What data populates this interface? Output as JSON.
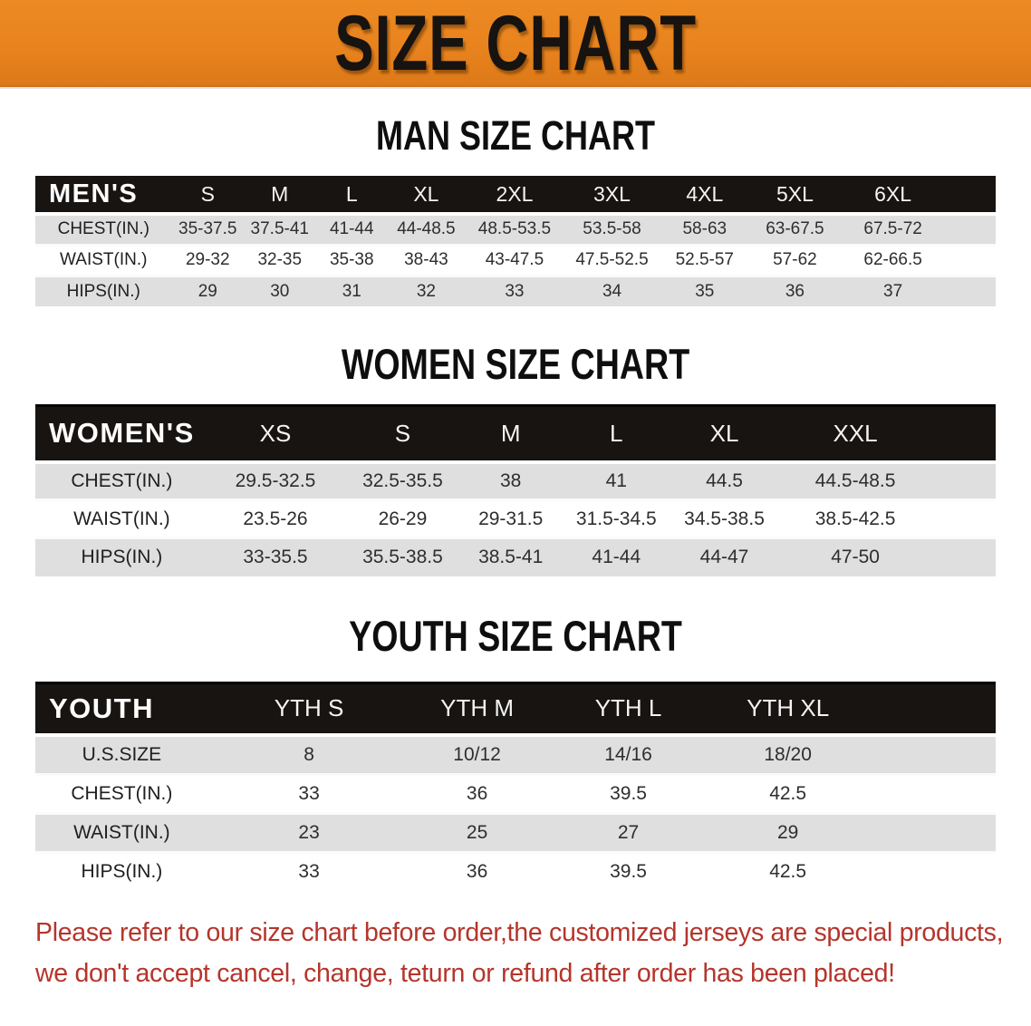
{
  "banner": {
    "title": "SIZE CHART"
  },
  "sections": [
    {
      "heading": "MAN SIZE CHART",
      "group_label": "MEN'S",
      "columns": [
        "S",
        "M",
        "L",
        "XL",
        "2XL",
        "3XL",
        "4XL",
        "5XL",
        "6XL"
      ],
      "rows": [
        {
          "label": "CHEST(IN.)",
          "values": [
            "35-37.5",
            "37.5-41",
            "41-44",
            "44-48.5",
            "48.5-53.5",
            "53.5-58",
            "58-63",
            "63-67.5",
            "67.5-72"
          ]
        },
        {
          "label": "WAIST(IN.)",
          "values": [
            "29-32",
            "32-35",
            "35-38",
            "38-43",
            "43-47.5",
            "47.5-52.5",
            "52.5-57",
            "57-62",
            "62-66.5"
          ]
        },
        {
          "label": "HIPS(IN.)",
          "values": [
            "29",
            "30",
            "31",
            "32",
            "33",
            "34",
            "35",
            "36",
            "37"
          ]
        }
      ]
    },
    {
      "heading": "WOMEN SIZE CHART",
      "group_label": "WOMEN'S",
      "columns": [
        "XS",
        "S",
        "M",
        "L",
        "XL",
        "XXL"
      ],
      "rows": [
        {
          "label": "CHEST(IN.)",
          "values": [
            "29.5-32.5",
            "32.5-35.5",
            "38",
            "41",
            "44.5",
            "44.5-48.5"
          ]
        },
        {
          "label": "WAIST(IN.)",
          "values": [
            "23.5-26",
            "26-29",
            "29-31.5",
            "31.5-34.5",
            "34.5-38.5",
            "38.5-42.5"
          ]
        },
        {
          "label": "HIPS(IN.)",
          "values": [
            "33-35.5",
            "35.5-38.5",
            "38.5-41",
            "41-44",
            "44-47",
            "47-50"
          ]
        }
      ]
    },
    {
      "heading": "YOUTH SIZE CHART",
      "group_label": "YOUTH",
      "columns": [
        "YTH S",
        "YTH M",
        "YTH L",
        "YTH XL"
      ],
      "rows": [
        {
          "label": "U.S.SIZE",
          "values": [
            "8",
            "10/12",
            "14/16",
            "18/20"
          ]
        },
        {
          "label": "CHEST(IN.)",
          "values": [
            "33",
            "36",
            "39.5",
            "42.5"
          ]
        },
        {
          "label": "WAIST(IN.)",
          "values": [
            "23",
            "25",
            "27",
            "29"
          ]
        },
        {
          "label": "HIPS(IN.)",
          "values": [
            "33",
            "36",
            "39.5",
            "42.5"
          ]
        }
      ]
    }
  ],
  "note": {
    "lines": [
      "Please refer to our size chart before order,the customized jerseys are special products,",
      "we don't accept cancel, change, teturn or refund after order has been placed!"
    ]
  },
  "colors": {
    "banner_orange": "#E8831E",
    "header_bar_black": "#171412",
    "row_gray": "#DFDFDF",
    "row_white": "#FFFFFF",
    "note_red": "#B5352B"
  }
}
